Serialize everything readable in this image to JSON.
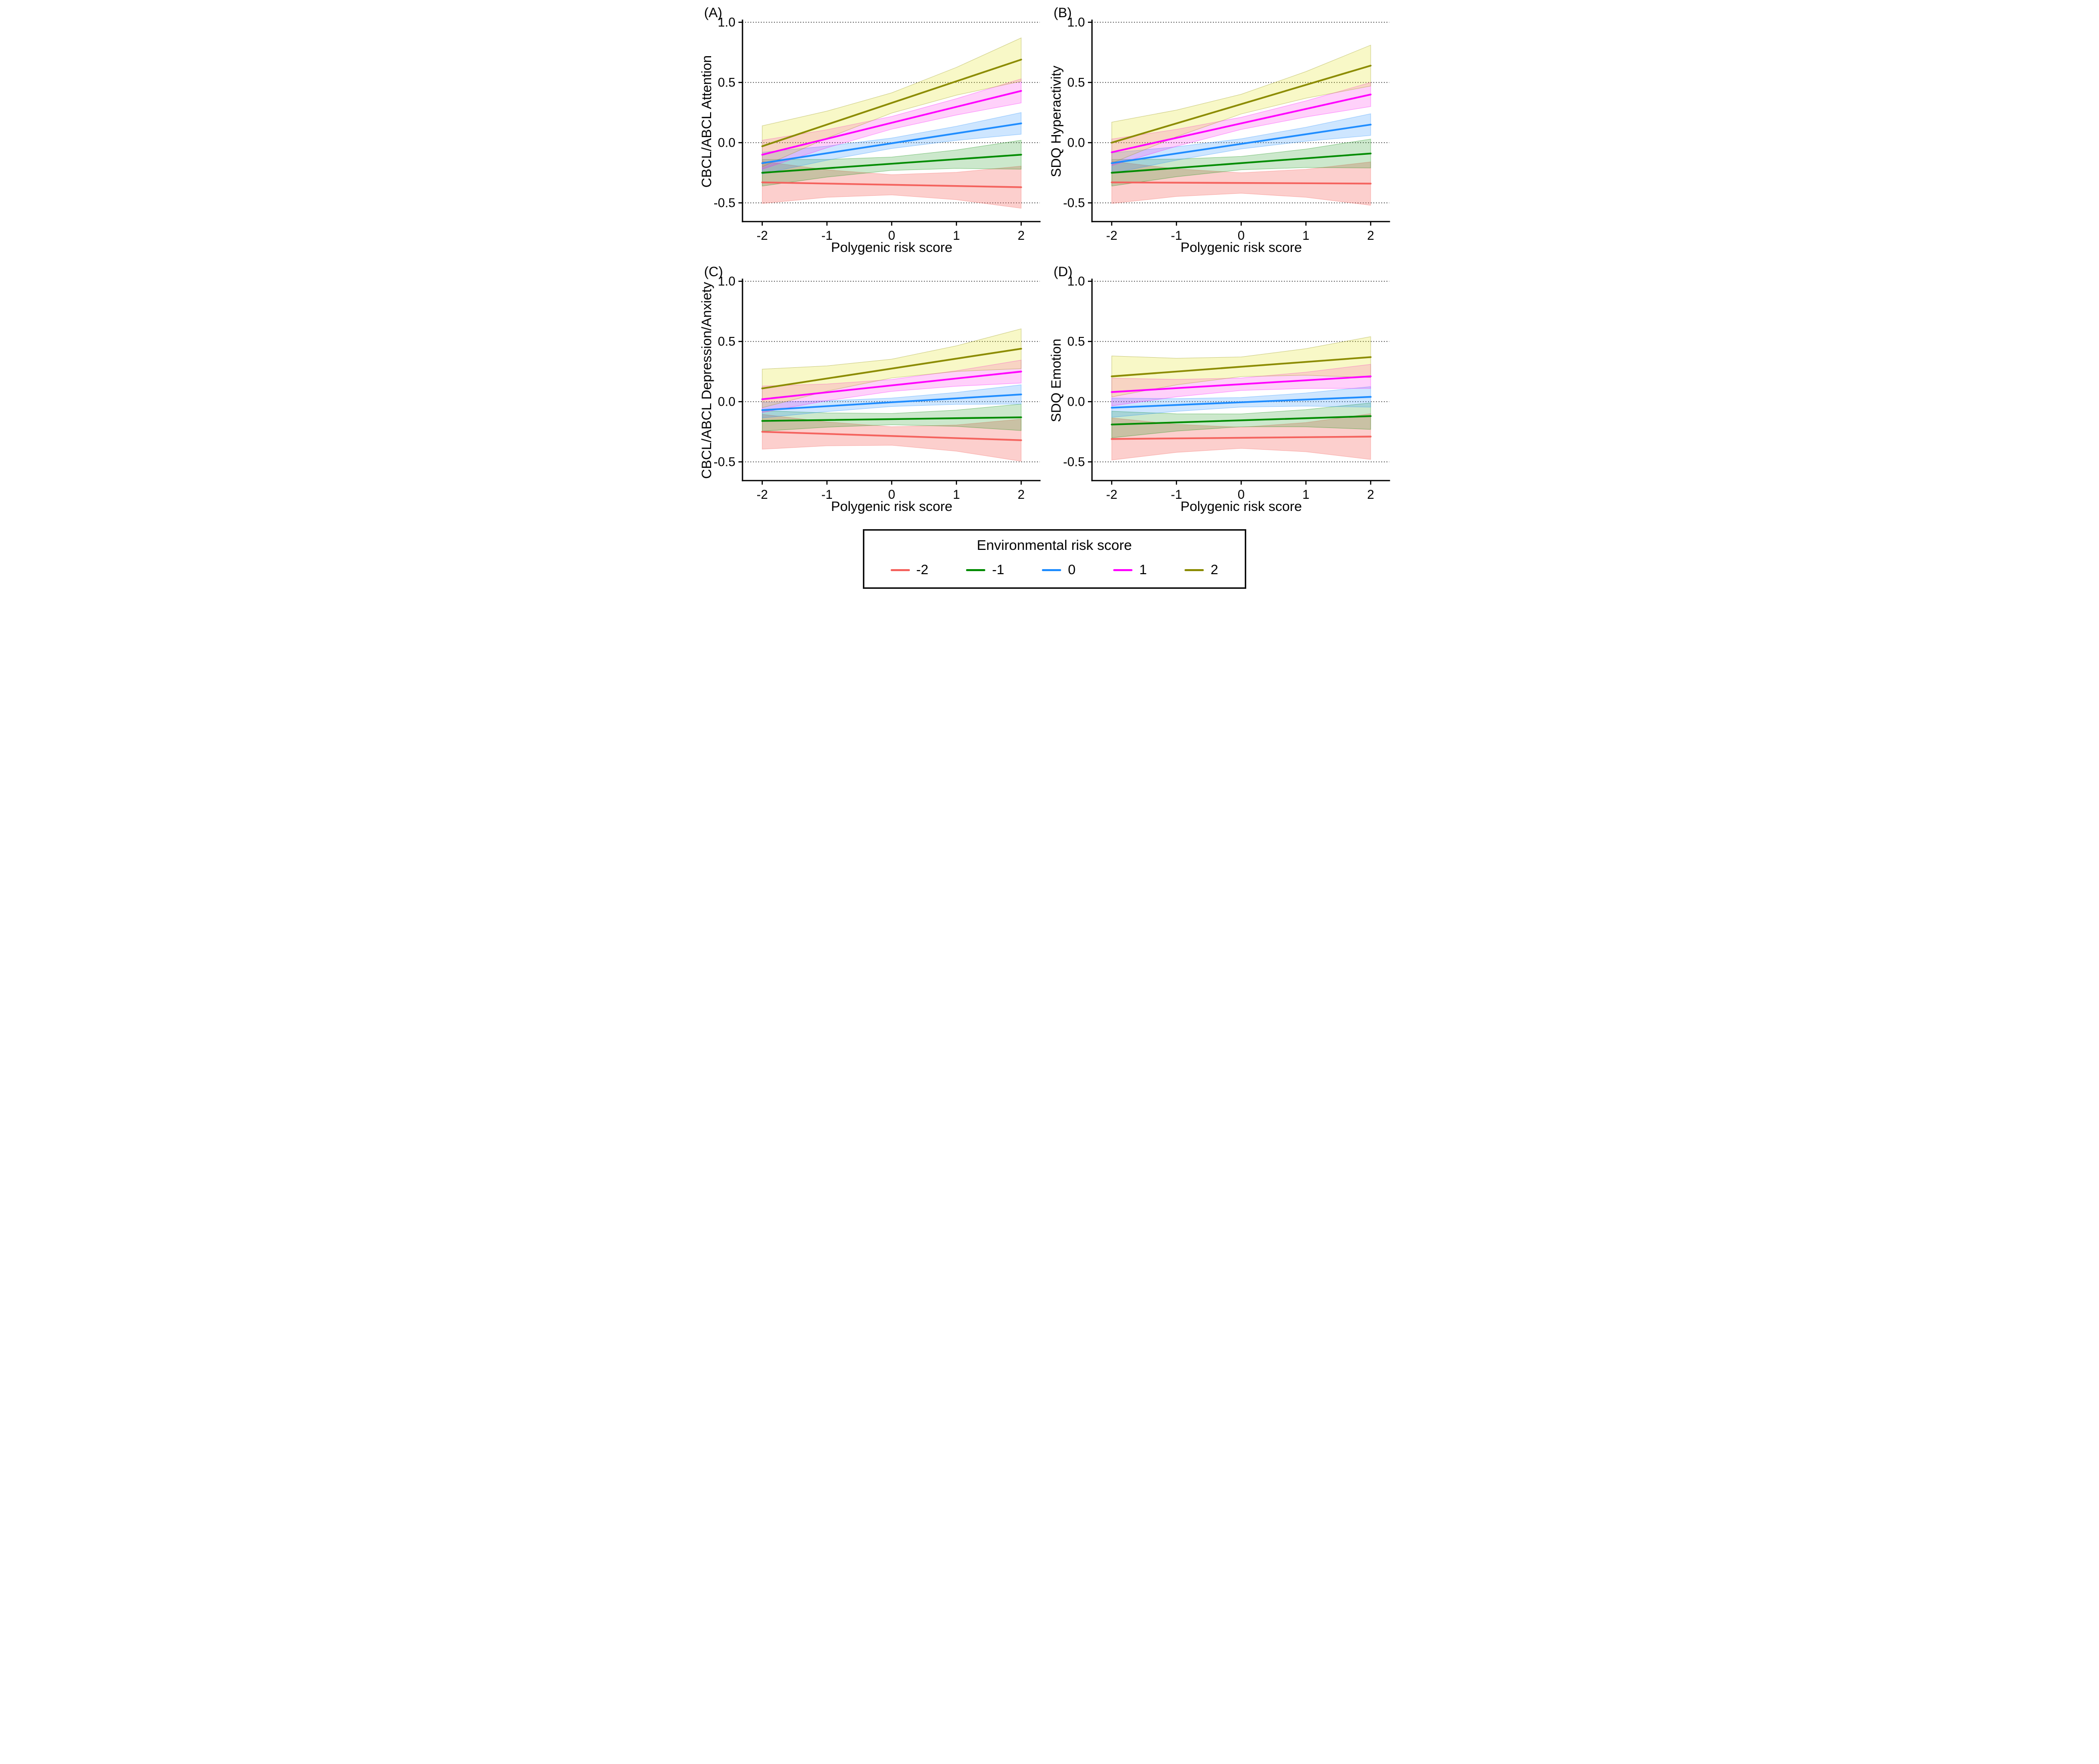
{
  "band_geometry": {
    "band_x": [
      -2,
      -1,
      0,
      1,
      2
    ],
    "band_width_factors": [
      1,
      0.65,
      0.48,
      0.65,
      1
    ],
    "note": "confidence ribbons are hourglass shaped: half-width = lerp(end halfwidths) * factor"
  },
  "legend": {
    "title": "Environmental risk score",
    "items": [
      {
        "label": "-2",
        "color": "#F4625D"
      },
      {
        "label": "-1",
        "color": "#008B00"
      },
      {
        "label": "0",
        "color": "#1E8CFF"
      },
      {
        "label": "1",
        "color": "#FF00FF"
      },
      {
        "label": "2",
        "color": "#8B8B00"
      }
    ]
  },
  "chart_data": [
    {
      "id": "A",
      "panel_label": "(A)",
      "type": "line",
      "xlabel": "Polygenic risk score",
      "ylabel": "CBCL/ABCL Attention",
      "x_ticks": [
        -2,
        -1,
        0,
        1,
        2
      ],
      "x_tick_labels": [
        "-2",
        "-1",
        "0",
        "1",
        "2"
      ],
      "y_ticks": [
        1.0,
        0.5,
        0.0,
        -0.5
      ],
      "y_tick_labels": [
        "1.0",
        "0.5",
        "0.0",
        "-0.5"
      ],
      "xlim": [
        -2.3,
        2.3
      ],
      "ylim": [
        -0.75,
        1.05
      ],
      "grid": "horizontal dotted",
      "legend_position": "shared bottom box",
      "series": [
        {
          "name": "-2",
          "color": "#F4625D",
          "band_color": "rgba(246,97,88,0.30)",
          "x": [
            -2,
            2
          ],
          "y": [
            -0.33,
            -0.37
          ],
          "ci_halfwidth": [
            0.175,
            0.175
          ]
        },
        {
          "name": "-1",
          "color": "#008B00",
          "band_color": "rgba(0,139,0,0.20)",
          "x": [
            -2,
            2
          ],
          "y": [
            -0.25,
            -0.1
          ],
          "ci_halfwidth": [
            0.11,
            0.12
          ]
        },
        {
          "name": "0",
          "color": "#1E8CFF",
          "band_color": "rgba(30,140,255,0.22)",
          "x": [
            -2,
            2
          ],
          "y": [
            -0.17,
            0.16
          ],
          "ci_halfwidth": [
            0.09,
            0.09
          ]
        },
        {
          "name": "1",
          "color": "#FF00FF",
          "band_color": "rgba(255,0,230,0.18)",
          "x": [
            -2,
            2
          ],
          "y": [
            -0.1,
            0.43
          ],
          "ci_halfwidth": [
            0.12,
            0.1
          ]
        },
        {
          "name": "2",
          "color": "#8B8B00",
          "band_color": "rgba(225,225,0,0.22)",
          "x": [
            -2,
            2
          ],
          "y": [
            -0.03,
            0.69
          ],
          "ci_halfwidth": [
            0.17,
            0.18
          ]
        }
      ]
    },
    {
      "id": "B",
      "panel_label": "(B)",
      "type": "line",
      "xlabel": "Polygenic risk score",
      "ylabel": "SDQ Hyperactivity",
      "x_ticks": [
        -2,
        -1,
        0,
        1,
        2
      ],
      "x_tick_labels": [
        "-2",
        "-1",
        "0",
        "1",
        "2"
      ],
      "y_ticks": [
        1.0,
        0.5,
        0.0,
        -0.5
      ],
      "y_tick_labels": [
        "1.0",
        "0.5",
        "0.0",
        "-0.5"
      ],
      "xlim": [
        -2.3,
        2.3
      ],
      "ylim": [
        -0.75,
        1.05
      ],
      "grid": "horizontal dotted",
      "legend_position": "shared bottom box",
      "series": [
        {
          "name": "-2",
          "color": "#F4625D",
          "band_color": "rgba(246,97,88,0.30)",
          "x": [
            -2,
            2
          ],
          "y": [
            -0.33,
            -0.34
          ],
          "ci_halfwidth": [
            0.175,
            0.18
          ]
        },
        {
          "name": "-1",
          "color": "#008B00",
          "band_color": "rgba(0,139,0,0.20)",
          "x": [
            -2,
            2
          ],
          "y": [
            -0.25,
            -0.09
          ],
          "ci_halfwidth": [
            0.11,
            0.12
          ]
        },
        {
          "name": "0",
          "color": "#1E8CFF",
          "band_color": "rgba(30,140,255,0.22)",
          "x": [
            -2,
            2
          ],
          "y": [
            -0.17,
            0.15
          ],
          "ci_halfwidth": [
            0.085,
            0.09
          ]
        },
        {
          "name": "1",
          "color": "#FF00FF",
          "band_color": "rgba(255,0,230,0.18)",
          "x": [
            -2,
            2
          ],
          "y": [
            -0.08,
            0.4
          ],
          "ci_halfwidth": [
            0.11,
            0.1
          ]
        },
        {
          "name": "2",
          "color": "#8B8B00",
          "band_color": "rgba(225,225,0,0.22)",
          "x": [
            -2,
            2
          ],
          "y": [
            0.0,
            0.64
          ],
          "ci_halfwidth": [
            0.17,
            0.17
          ]
        }
      ]
    },
    {
      "id": "C",
      "panel_label": "(C)",
      "type": "line",
      "xlabel": "Polygenic risk score",
      "ylabel": "CBCL/ABCL Depression/Anxiety",
      "x_ticks": [
        -2,
        -1,
        0,
        1,
        2
      ],
      "x_tick_labels": [
        "-2",
        "-1",
        "0",
        "1",
        "2"
      ],
      "y_ticks": [
        1.0,
        0.5,
        0.0,
        -0.5
      ],
      "y_tick_labels": [
        "1.0",
        "0.5",
        "0.0",
        "-0.5"
      ],
      "xlim": [
        -2.3,
        2.3
      ],
      "ylim": [
        -0.75,
        1.05
      ],
      "grid": "horizontal dotted",
      "legend_position": "shared bottom box",
      "series": [
        {
          "name": "-2",
          "color": "#F4625D",
          "band_color": "rgba(246,97,88,0.30)",
          "x": [
            -2,
            2
          ],
          "y": [
            -0.25,
            -0.32
          ],
          "ci_halfwidth": [
            0.145,
            0.175
          ]
        },
        {
          "name": "-1",
          "color": "#008B00",
          "band_color": "rgba(0,139,0,0.20)",
          "x": [
            -2,
            2
          ],
          "y": [
            -0.16,
            -0.13
          ],
          "ci_halfwidth": [
            0.085,
            0.11
          ]
        },
        {
          "name": "0",
          "color": "#1E8CFF",
          "band_color": "rgba(30,140,255,0.22)",
          "x": [
            -2,
            2
          ],
          "y": [
            -0.07,
            0.06
          ],
          "ci_halfwidth": [
            0.065,
            0.08
          ]
        },
        {
          "name": "1",
          "color": "#FF00FF",
          "band_color": "rgba(255,0,230,0.18)",
          "x": [
            -2,
            2
          ],
          "y": [
            0.02,
            0.25
          ],
          "ci_halfwidth": [
            0.11,
            0.095
          ]
        },
        {
          "name": "2",
          "color": "#8B8B00",
          "band_color": "rgba(225,225,0,0.22)",
          "x": [
            -2,
            2
          ],
          "y": [
            0.11,
            0.44
          ],
          "ci_halfwidth": [
            0.16,
            0.165
          ]
        }
      ]
    },
    {
      "id": "D",
      "panel_label": "(D)",
      "type": "line",
      "xlabel": "Polygenic risk score",
      "ylabel": "SDQ Emotion",
      "x_ticks": [
        -2,
        -1,
        0,
        1,
        2
      ],
      "x_tick_labels": [
        "-2",
        "-1",
        "0",
        "1",
        "2"
      ],
      "y_ticks": [
        1.0,
        0.5,
        0.0,
        -0.5
      ],
      "y_tick_labels": [
        "1.0",
        "0.5",
        "0.0",
        "-0.5"
      ],
      "xlim": [
        -2.3,
        2.3
      ],
      "ylim": [
        -0.75,
        1.05
      ],
      "grid": "horizontal dotted",
      "legend_position": "shared bottom box",
      "series": [
        {
          "name": "-2",
          "color": "#F4625D",
          "band_color": "rgba(246,97,88,0.30)",
          "x": [
            -2,
            2
          ],
          "y": [
            -0.31,
            -0.29
          ],
          "ci_halfwidth": [
            0.175,
            0.19
          ]
        },
        {
          "name": "-1",
          "color": "#008B00",
          "band_color": "rgba(0,139,0,0.20)",
          "x": [
            -2,
            2
          ],
          "y": [
            -0.19,
            -0.12
          ],
          "ci_halfwidth": [
            0.11,
            0.11
          ]
        },
        {
          "name": "0",
          "color": "#1E8CFF",
          "band_color": "rgba(30,140,255,0.22)",
          "x": [
            -2,
            2
          ],
          "y": [
            -0.05,
            0.04
          ],
          "ci_halfwidth": [
            0.08,
            0.085
          ]
        },
        {
          "name": "1",
          "color": "#FF00FF",
          "band_color": "rgba(255,0,230,0.18)",
          "x": [
            -2,
            2
          ],
          "y": [
            0.08,
            0.21
          ],
          "ci_halfwidth": [
            0.115,
            0.1
          ]
        },
        {
          "name": "2",
          "color": "#8B8B00",
          "band_color": "rgba(225,225,0,0.22)",
          "x": [
            -2,
            2
          ],
          "y": [
            0.21,
            0.37
          ],
          "ci_halfwidth": [
            0.17,
            0.17
          ]
        }
      ]
    }
  ]
}
